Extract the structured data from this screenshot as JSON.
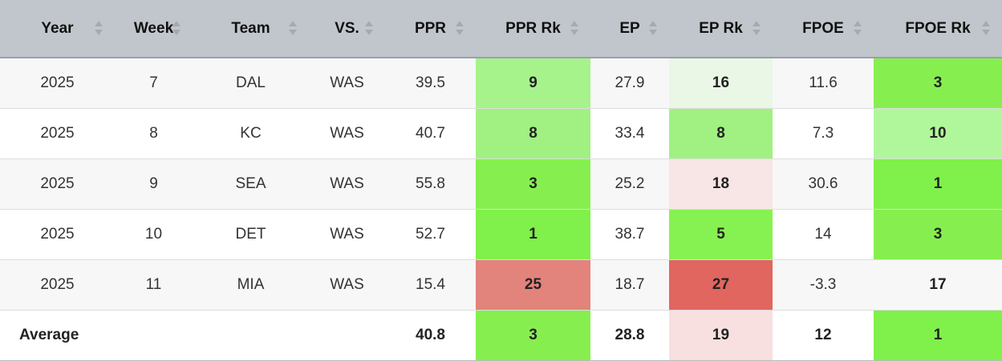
{
  "table": {
    "columns": [
      "Year",
      "Week",
      "Team",
      "VS.",
      "PPR",
      "PPR Rk",
      "EP",
      "EP Rk",
      "FPOE",
      "FPOE Rk"
    ],
    "rows": [
      [
        2025,
        7,
        "DAL",
        "WAS",
        39.5,
        9,
        27.9,
        16,
        11.6,
        3
      ],
      [
        2025,
        8,
        "KC",
        "WAS",
        40.7,
        8,
        33.4,
        8,
        7.3,
        10
      ],
      [
        2025,
        9,
        "SEA",
        "WAS",
        55.8,
        3,
        25.2,
        18,
        30.6,
        1
      ],
      [
        2025,
        10,
        "DET",
        "WAS",
        52.7,
        1,
        38.7,
        5,
        14,
        3
      ],
      [
        2025,
        11,
        "MIA",
        "WAS",
        15.4,
        25,
        18.7,
        27,
        -3.3,
        17
      ]
    ],
    "average": {
      "label": "Average",
      "values": [
        40.8,
        3,
        28.8,
        19,
        12,
        1
      ]
    }
  }
}
